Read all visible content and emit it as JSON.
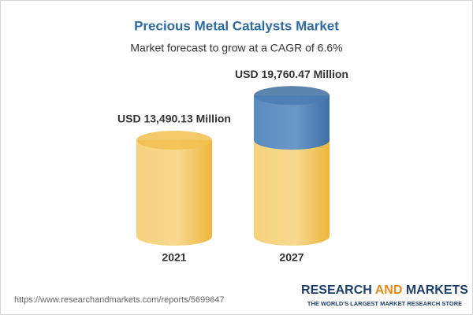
{
  "chart_data": {
    "type": "cylinder",
    "title": "Precious Metal Catalysts Market",
    "subtitle": "Market forecast to grow at a CAGR of 6.6%",
    "categories": [
      "2021",
      "2027"
    ],
    "values": [
      13490.13,
      19760.47
    ],
    "value_labels": [
      "USD 13,490.13 Million",
      "USD 19,760.47 Million"
    ],
    "color": "#f3c04f",
    "growth_color": "#4a7db5"
  },
  "footer": {
    "url": "https://www.researchandmarkets.com/reports/5699647",
    "brand_parts": [
      "RESEARCH",
      "AND",
      "MARKETS"
    ],
    "tagline": "THE WORLD'S LARGEST MARKET RESEARCH STORE"
  }
}
